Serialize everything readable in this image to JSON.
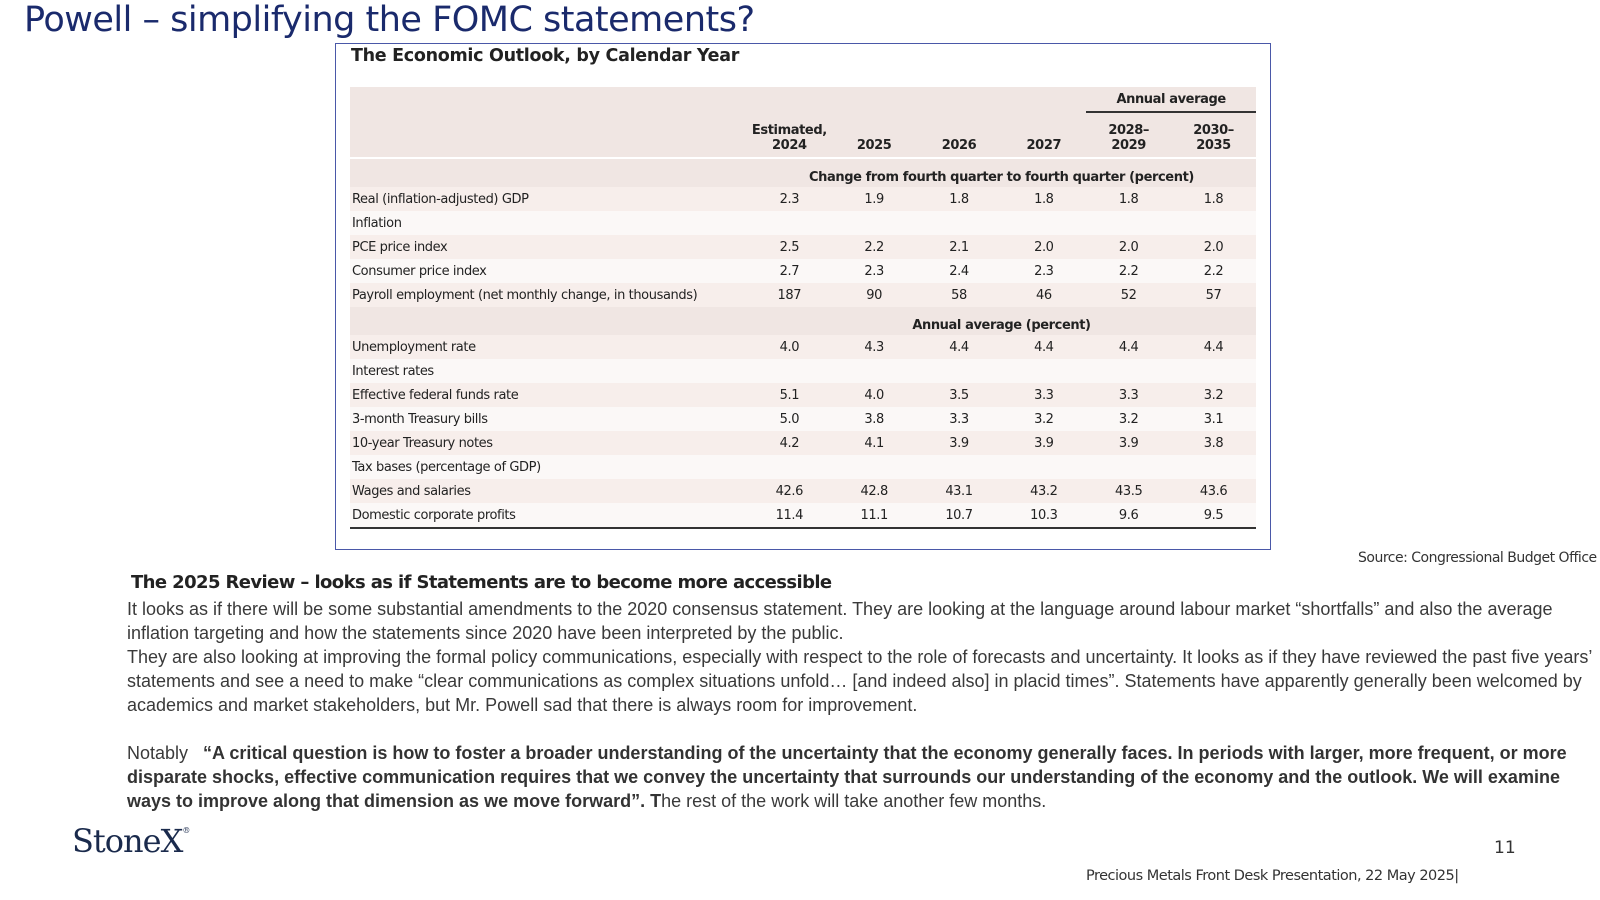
{
  "title": "Powell – simplifying the FOMC statements?",
  "table": {
    "title": "The Economic Outlook, by Calendar Year",
    "annual_average_label": "Annual average",
    "columns": [
      "Estimated,\n2024",
      "2025",
      "2026",
      "2027",
      "2028–\n2029",
      "2030–\n2035"
    ],
    "section1": "Change from fourth quarter to fourth quarter (percent)",
    "section2": "Annual average (percent)",
    "rows1": [
      {
        "label": "Real (inflation-adjusted) GDP",
        "indent": false,
        "values": [
          "2.3",
          "1.9",
          "1.8",
          "1.8",
          "1.8",
          "1.8"
        ]
      },
      {
        "label": "Inflation",
        "indent": false,
        "values": []
      },
      {
        "label": "PCE price index",
        "indent": true,
        "values": [
          "2.5",
          "2.2",
          "2.1",
          "2.0",
          "2.0",
          "2.0"
        ]
      },
      {
        "label": "Consumer price index",
        "indent": true,
        "values": [
          "2.7",
          "2.3",
          "2.4",
          "2.3",
          "2.2",
          "2.2"
        ]
      },
      {
        "label": "Payroll employment (net monthly change, in thousands)",
        "indent": false,
        "values": [
          "187",
          "90",
          "58",
          "46",
          "52",
          "57"
        ]
      }
    ],
    "rows2": [
      {
        "label": "Unemployment rate",
        "indent": false,
        "values": [
          "4.0",
          "4.3",
          "4.4",
          "4.4",
          "4.4",
          "4.4"
        ]
      },
      {
        "label": "Interest rates",
        "indent": false,
        "values": []
      },
      {
        "label": "Effective federal funds rate",
        "indent": true,
        "values": [
          "5.1",
          "4.0",
          "3.5",
          "3.3",
          "3.3",
          "3.2"
        ]
      },
      {
        "label": "3-month Treasury bills",
        "indent": true,
        "values": [
          "5.0",
          "3.8",
          "3.3",
          "3.2",
          "3.2",
          "3.1"
        ]
      },
      {
        "label": "10-year Treasury notes",
        "indent": true,
        "values": [
          "4.2",
          "4.1",
          "3.9",
          "3.9",
          "3.9",
          "3.8"
        ]
      },
      {
        "label": "Tax bases (percentage of GDP)",
        "indent": false,
        "values": []
      },
      {
        "label": "Wages and salaries",
        "indent": true,
        "values": [
          "42.6",
          "42.8",
          "43.1",
          "43.2",
          "43.5",
          "43.6"
        ]
      },
      {
        "label": "Domestic corporate profits",
        "indent": true,
        "values": [
          "11.4",
          "11.1",
          "10.7",
          "10.3",
          "9.6",
          "9.5"
        ]
      }
    ]
  },
  "source": "Source: Congressional Budget Office",
  "sub_heading": "The 2025 Review – looks as if Statements are to become more accessible",
  "paragraphs": [
    "It looks as if there will be some substantial amendments to the 2020 consensus statement.  They are looking at the language around labour market “shortfalls” and also the average inflation targeting and how the statements since 2020 have been interpreted by the public.",
    "They are also looking at improving the formal policy communications, especially with respect to the role of forecasts and uncertainty.  It looks as if they have reviewed the past five years’ statements and see a need to make “clear communications as complex situations unfold… [and indeed also] in placid times”.  Statements have apparently generally been welcomed by academics and market stakeholders, but Mr. Powell sad that there is always room for improvement."
  ],
  "notably": {
    "lead": "Notably   ",
    "quote": "“A critical question is how to foster a broader understanding of the uncertainty that the economy generally faces. In periods with larger, more frequent, or more disparate shocks, effective communication requires that we convey the uncertainty that surrounds our understanding of the economy and the outlook. We will examine ways to improve along that dimension as we move forward”.  T",
    "tail": "he rest of the work will take another few months."
  },
  "logo": "StoneX",
  "page_number": "11",
  "footer": "Precious Metals Front Desk Presentation, 22 May 2025|"
}
